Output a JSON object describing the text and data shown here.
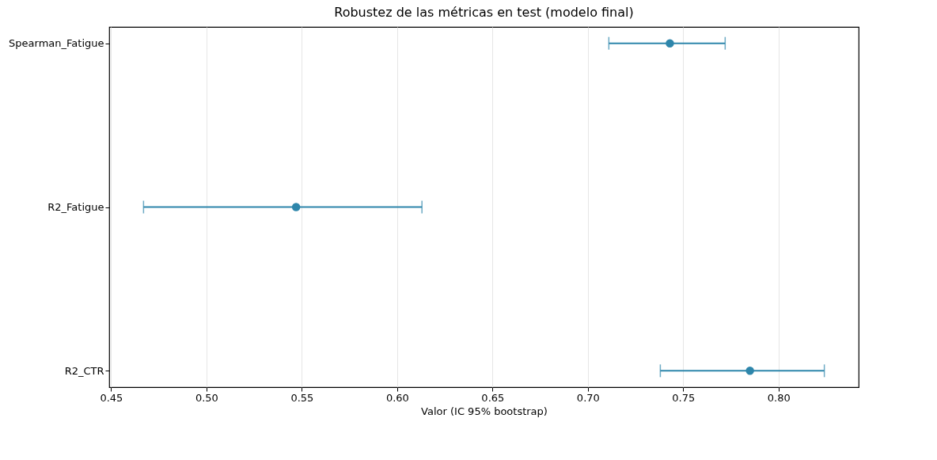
{
  "chart_data": {
    "type": "scatter",
    "orientation": "horizontal",
    "title": "Robustez de las métricas en test (modelo final)",
    "xlabel": "Valor (IC 95% bootstrap)",
    "categories": [
      "Spearman_Fatigue",
      "R2_Fatigue",
      "R2_CTR"
    ],
    "color": "#2e86ab",
    "values": [
      0.743,
      0.547,
      0.785
    ],
    "errors": [
      [
        0.711,
        0.772
      ],
      [
        0.467,
        0.613
      ],
      [
        0.738,
        0.824
      ]
    ],
    "xlim": [
      0.449,
      0.842
    ],
    "xticks": [
      0.45,
      {
        "value": 0.5,
        "label": "0.50"
      },
      0.55,
      {
        "value": 0.6,
        "label": "0.60"
      },
      0.65,
      {
        "value": 0.7,
        "label": "0.70"
      },
      0.75,
      {
        "value": 0.8,
        "label": "0.80"
      }
    ],
    "grid": "x",
    "marker": "circle"
  }
}
